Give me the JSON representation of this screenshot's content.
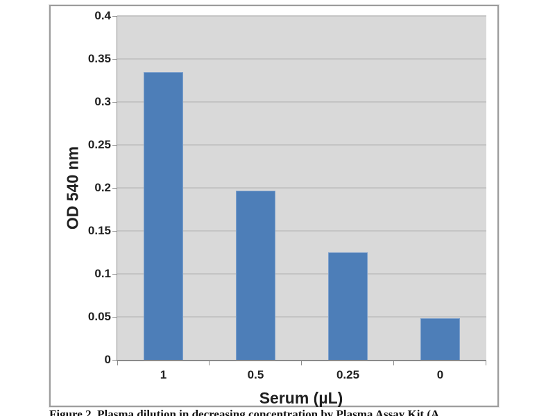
{
  "figure": {
    "caption": "Figure 2. Plasma dilution in decreasing concentration by Plasma Assay Kit (A"
  },
  "chart_data": {
    "type": "bar",
    "title": "",
    "categories": [
      "1",
      "0.5",
      "0.25",
      "0"
    ],
    "values": [
      0.335,
      0.197,
      0.125,
      0.048
    ],
    "xlabel": "Serum (µL)",
    "ylabel": "OD 540 nm",
    "ylim": [
      0,
      0.4
    ],
    "ytick_labels": [
      "0",
      "0.05",
      "0.1",
      "0.15",
      "0.2",
      "0.25",
      "0.3",
      "0.35",
      "0.4"
    ],
    "grid": true,
    "legend": "none",
    "colors": {
      "bar_fill": "#4d7eb8",
      "bar_edge": "#7da0cc",
      "plot_background": "#d9d9d9",
      "gridline": "#bfbfbf",
      "axis_line": "#8a8a8a",
      "frame_border": "#9c9c9c",
      "text": "#1f1f1f"
    }
  }
}
